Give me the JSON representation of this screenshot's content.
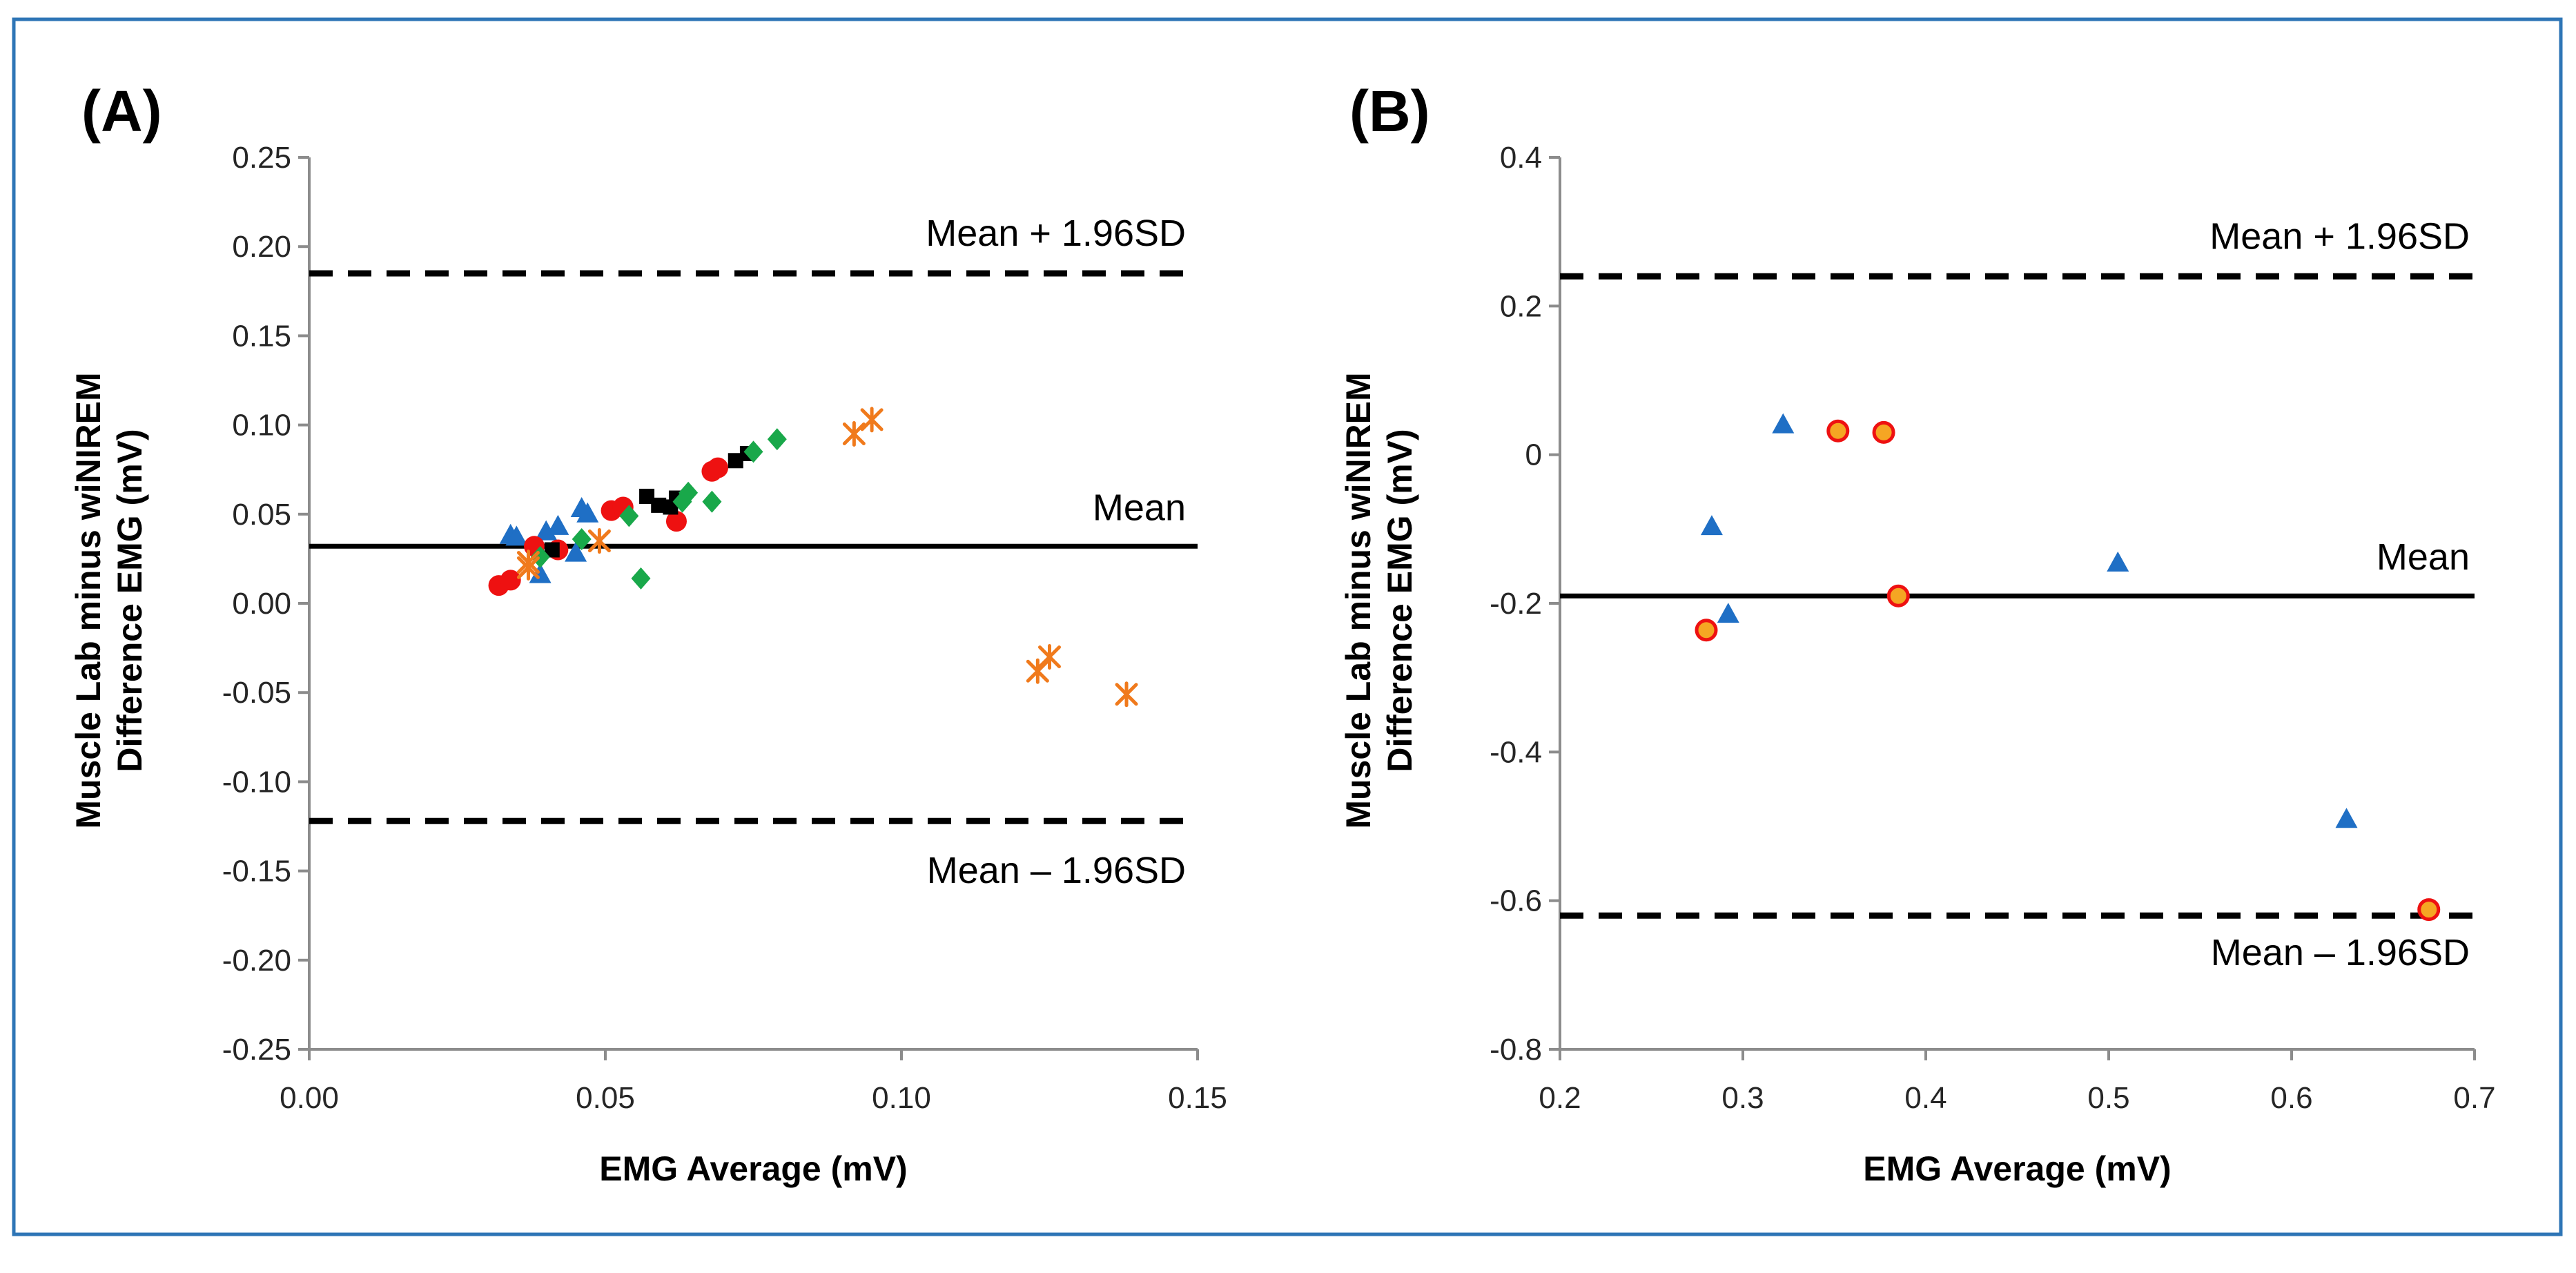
{
  "chart_data": [
    {
      "type": "scatter",
      "panel_label": "(A)",
      "xlabel": "EMG Average (mV)",
      "ylabel": [
        "Muscle Lab minus wiNIREM",
        "Difference EMG (mV)"
      ],
      "xlim": [
        0,
        0.15
      ],
      "ylim": [
        -0.25,
        0.25
      ],
      "xticks": [
        0,
        0.05,
        0.1,
        0.15
      ],
      "xtick_labels": [
        "0.00",
        "0.05",
        "0.10",
        "0.15"
      ],
      "yticks": [
        0.25,
        0.2,
        0.15,
        0.1,
        0.05,
        0,
        -0.05,
        -0.1,
        -0.15,
        -0.2,
        -0.25
      ],
      "ytick_labels": [
        "0.25",
        "0.20",
        "0.15",
        "0.10",
        "0.05",
        "0.00",
        "-0.05",
        "-0.10",
        "-0.15",
        "-0.20",
        "-0.25"
      ],
      "reference_lines": [
        {
          "name": "Mean + 1.96SD",
          "label": "Mean + 1.96SD",
          "y": 0.185,
          "style": "dashed"
        },
        {
          "name": "Mean",
          "label": "Mean",
          "y": 0.032,
          "style": "solid"
        },
        {
          "name": "Mean – 1.96SD",
          "label": "Mean – 1.96SD",
          "y": -0.122,
          "style": "dashed"
        }
      ],
      "series": [
        {
          "name": "series-1",
          "marker": "triangle",
          "color": "#1f6fc5",
          "points": [
            [
              0.034,
              0.038
            ],
            [
              0.035,
              0.037
            ],
            [
              0.039,
              0.016
            ],
            [
              0.04,
              0.04
            ],
            [
              0.042,
              0.043
            ],
            [
              0.045,
              0.028
            ],
            [
              0.046,
              0.053
            ],
            [
              0.047,
              0.05
            ]
          ]
        },
        {
          "name": "series-2",
          "marker": "circle",
          "color": "#ee1111",
          "points": [
            [
              0.032,
              0.01
            ],
            [
              0.034,
              0.013
            ],
            [
              0.038,
              0.032
            ],
            [
              0.042,
              0.03
            ],
            [
              0.051,
              0.052
            ],
            [
              0.053,
              0.054
            ],
            [
              0.062,
              0.046
            ],
            [
              0.068,
              0.074
            ],
            [
              0.069,
              0.076
            ]
          ]
        },
        {
          "name": "series-3",
          "marker": "square",
          "color": "#000000",
          "points": [
            [
              0.041,
              0.03
            ],
            [
              0.057,
              0.06
            ],
            [
              0.059,
              0.055
            ],
            [
              0.061,
              0.054
            ],
            [
              0.062,
              0.059
            ],
            [
              0.072,
              0.08
            ],
            [
              0.074,
              0.084
            ]
          ]
        },
        {
          "name": "series-4",
          "marker": "diamond",
          "color": "#19a84a",
          "points": [
            [
              0.039,
              0.026
            ],
            [
              0.046,
              0.036
            ],
            [
              0.054,
              0.049
            ],
            [
              0.056,
              0.014
            ],
            [
              0.063,
              0.057
            ],
            [
              0.064,
              0.062
            ],
            [
              0.068,
              0.057
            ],
            [
              0.075,
              0.085
            ],
            [
              0.079,
              0.092
            ]
          ]
        },
        {
          "name": "series-5",
          "marker": "star",
          "color": "#f07a1c",
          "points": [
            [
              0.037,
              0.02
            ],
            [
              0.037,
              0.023
            ],
            [
              0.049,
              0.035
            ],
            [
              0.092,
              0.095
            ],
            [
              0.095,
              0.103
            ],
            [
              0.123,
              -0.038
            ],
            [
              0.125,
              -0.03
            ],
            [
              0.138,
              -0.051
            ]
          ]
        }
      ]
    },
    {
      "type": "scatter",
      "panel_label": "(B)",
      "xlabel": "EMG Average (mV)",
      "ylabel": [
        "Muscle Lab minus wiNIREM",
        "Difference EMG (mV)"
      ],
      "xlim": [
        0.2,
        0.7
      ],
      "ylim": [
        -0.8,
        0.4
      ],
      "xticks": [
        0.2,
        0.3,
        0.4,
        0.5,
        0.6,
        0.7
      ],
      "xtick_labels": [
        "0.2",
        "0.3",
        "0.4",
        "0.5",
        "0.6",
        "0.7"
      ],
      "yticks": [
        0.4,
        0.2,
        0,
        -0.2,
        -0.4,
        -0.6,
        -0.8
      ],
      "ytick_labels": [
        "0.4",
        "0.2",
        "0",
        "-0.2",
        "-0.4",
        "-0.6",
        "-0.8"
      ],
      "reference_lines": [
        {
          "name": "Mean + 1.96SD",
          "label": "Mean + 1.96SD",
          "y": 0.24,
          "style": "dashed"
        },
        {
          "name": "Mean",
          "label": "Mean",
          "y": -0.19,
          "style": "solid"
        },
        {
          "name": "Mean – 1.96SD",
          "label": "Mean – 1.96SD",
          "y": -0.62,
          "style": "dashed"
        }
      ],
      "series": [
        {
          "name": "series-1",
          "marker": "triangle",
          "color": "#1f6fc5",
          "points": [
            [
              0.283,
              -0.097
            ],
            [
              0.292,
              -0.215
            ],
            [
              0.322,
              0.04
            ],
            [
              0.505,
              -0.146
            ],
            [
              0.63,
              -0.491
            ]
          ]
        },
        {
          "name": "series-2",
          "marker": "circle-ringed",
          "color": "#ee1111",
          "fill": "#f5a623",
          "points": [
            [
              0.28,
              -0.236
            ],
            [
              0.352,
              0.032
            ],
            [
              0.377,
              0.03
            ],
            [
              0.385,
              -0.19
            ],
            [
              0.675,
              -0.612
            ]
          ]
        }
      ]
    }
  ]
}
